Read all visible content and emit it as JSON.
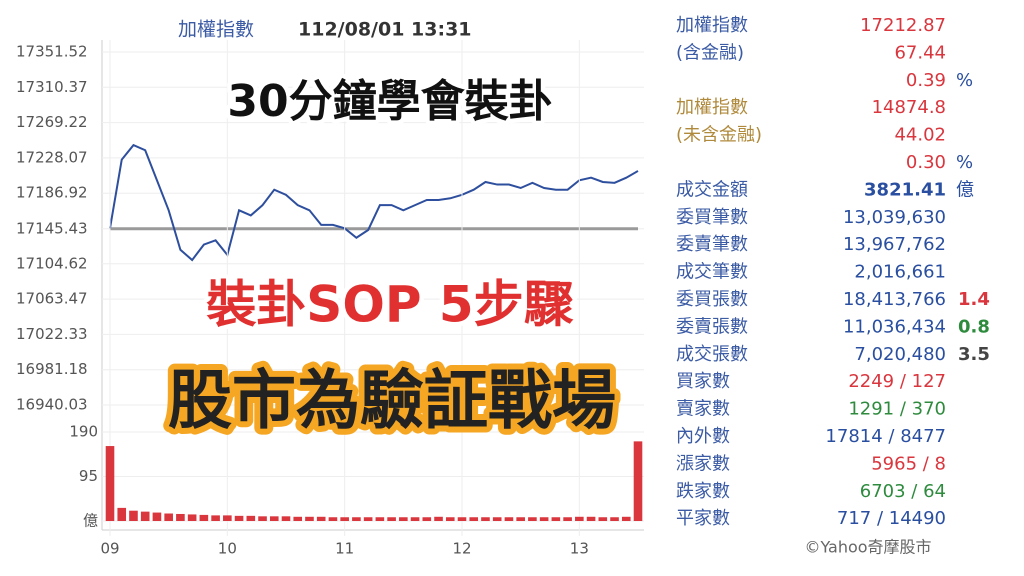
{
  "header": {
    "title": "加權指數",
    "timestamp": "112/08/01 13:31"
  },
  "overlay": {
    "line1": "30分鐘學會裝卦",
    "line2": "裝卦SOP 5步驟",
    "line3": "股市為驗証戰場"
  },
  "chart_data": [
    {
      "type": "line",
      "color": "#2e4f9e",
      "reference_line": 17145.43,
      "reference_color": "#9a9a9a",
      "x": [
        9.0,
        9.1,
        9.2,
        9.3,
        9.4,
        9.5,
        9.6,
        9.7,
        9.8,
        9.9,
        10.0,
        10.1,
        10.2,
        10.3,
        10.4,
        10.5,
        10.6,
        10.7,
        10.8,
        10.9,
        11.0,
        11.1,
        11.2,
        11.3,
        11.4,
        11.5,
        11.6,
        11.7,
        11.8,
        11.9,
        12.0,
        12.1,
        12.2,
        12.3,
        12.4,
        12.5,
        12.6,
        12.7,
        12.8,
        12.9,
        13.0,
        13.1,
        13.2,
        13.3,
        13.4,
        13.5
      ],
      "values": [
        17146,
        17226,
        17243,
        17237,
        17202,
        17167,
        17121,
        17109,
        17127,
        17132,
        17115,
        17167,
        17161,
        17173,
        17191,
        17185,
        17173,
        17167,
        17150,
        17150,
        17146,
        17135,
        17144,
        17173,
        17173,
        17167,
        17173,
        17179,
        17179,
        17181,
        17185,
        17191,
        17200,
        17197,
        17197,
        17193,
        17199,
        17193,
        17191,
        17191,
        17202,
        17205,
        17200,
        17199,
        17205,
        17212.87
      ],
      "xlim": [
        9,
        13.5
      ],
      "ylim": [
        16940.03,
        17351.52
      ],
      "yticks": [
        17351.52,
        17310.37,
        17269.22,
        17228.07,
        17186.92,
        17145.43,
        17104.62,
        17063.47,
        17022.33,
        16981.18,
        16940.03
      ],
      "grid": true
    },
    {
      "type": "bar",
      "color": "#d9363e",
      "x": [
        9.0,
        9.1,
        9.2,
        9.3,
        9.4,
        9.5,
        9.6,
        9.7,
        9.8,
        9.9,
        10.0,
        10.1,
        10.2,
        10.3,
        10.4,
        10.5,
        10.6,
        10.7,
        10.8,
        10.9,
        11.0,
        11.1,
        11.2,
        11.3,
        11.4,
        11.5,
        11.6,
        11.7,
        11.8,
        11.9,
        12.0,
        12.1,
        12.2,
        12.3,
        12.4,
        12.5,
        12.6,
        12.7,
        12.8,
        12.9,
        13.0,
        13.1,
        13.2,
        13.3,
        13.4,
        13.5
      ],
      "values": [
        160,
        28,
        22,
        20,
        18,
        16,
        15,
        14,
        13,
        12,
        12,
        11,
        11,
        10,
        10,
        10,
        9,
        9,
        9,
        8,
        8,
        8,
        8,
        8,
        8,
        8,
        8,
        8,
        9,
        8,
        8,
        8,
        8,
        8,
        8,
        8,
        8,
        8,
        8,
        8,
        9,
        9,
        8,
        8,
        9,
        170
      ],
      "xlim": [
        9,
        13.5
      ],
      "ylim": [
        0,
        190
      ],
      "yticks": [
        190,
        95,
        {
          "value": 0,
          "label": "億"
        }
      ],
      "xticks": [
        {
          "value": 9,
          "label": "09"
        },
        10,
        11,
        12,
        13
      ]
    }
  ],
  "stats": [
    {
      "label": "加權指數",
      "value": "17212.87",
      "color": "#d9363e",
      "label_color": "#3b5ba5"
    },
    {
      "label": "(含金融)",
      "value": "67.44",
      "color": "#d9363e",
      "label_color": "#3b5ba5"
    },
    {
      "value": "0.39",
      "unit": "%",
      "color": "#d9363e"
    },
    {
      "label": "加權指數",
      "value": "14874.8",
      "color": "#d9363e",
      "label_color": "#b08a3c"
    },
    {
      "label": "(未含金融)",
      "value": "44.02",
      "color": "#d9363e",
      "label_color": "#b08a3c"
    },
    {
      "value": "0.30",
      "unit": "%",
      "color": "#d9363e"
    },
    {
      "label": "成交金額",
      "value": "3821.41",
      "unit": "億",
      "color": "#2a4fa0",
      "label_color": "#3b5ba5",
      "bold": true
    },
    {
      "label": "委買筆數",
      "value": "13,039,630",
      "color": "#2a4fa0",
      "label_color": "#3b5ba5"
    },
    {
      "label": "委賣筆數",
      "value": "13,967,762",
      "color": "#2a4fa0",
      "label_color": "#3b5ba5"
    },
    {
      "label": "成交筆數",
      "value": "2,016,661",
      "color": "#2a4fa0",
      "label_color": "#3b5ba5"
    },
    {
      "label": "委買張數",
      "value": "18,413,766",
      "extra": "1.4",
      "extra_color": "#d9363e",
      "color": "#2a4fa0",
      "label_color": "#3b5ba5"
    },
    {
      "label": "委賣張數",
      "value": "11,036,434",
      "extra": "0.8",
      "extra_color": "#2e8b3e",
      "color": "#2a4fa0",
      "label_color": "#3b5ba5"
    },
    {
      "label": "成交張數",
      "value": "7,020,480",
      "extra": "3.5",
      "extra_color": "#444444",
      "color": "#2a4fa0",
      "label_color": "#3b5ba5"
    },
    {
      "label": "買家數",
      "value": "2249 / 127",
      "color": "#d9363e",
      "label_color": "#3b5ba5"
    },
    {
      "label": "賣家數",
      "value": "1291 / 370",
      "color": "#2e8b3e",
      "label_color": "#3b5ba5"
    },
    {
      "label": "內外數",
      "value": "17814 / 8477",
      "color": "#2a4fa0",
      "label_color": "#3b5ba5"
    },
    {
      "label": "漲家數",
      "value": "5965 / 8",
      "color": "#d9363e",
      "label_color": "#3b5ba5"
    },
    {
      "label": "跌家數",
      "value": "6703 / 64",
      "color": "#2e8b3e",
      "label_color": "#3b5ba5"
    },
    {
      "label": "平家數",
      "value": "717 / 14490",
      "color": "#2a4fa0",
      "label_color": "#3b5ba5"
    }
  ],
  "credit": "©Yahoo奇摩股市"
}
